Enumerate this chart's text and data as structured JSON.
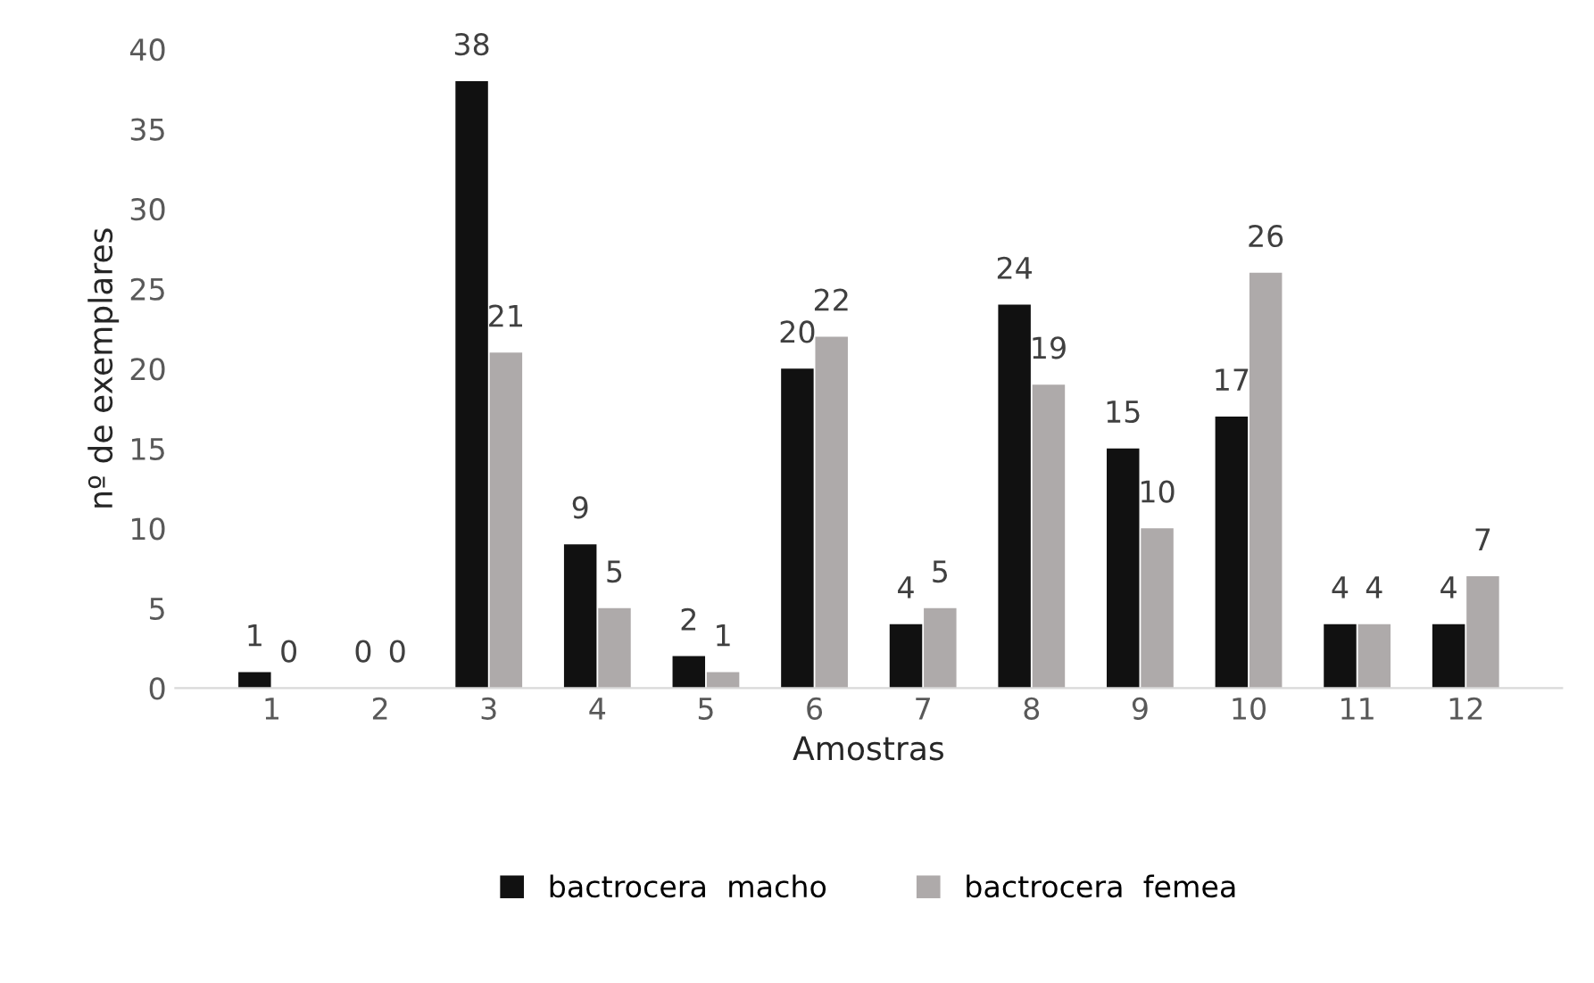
{
  "chart_data": {
    "type": "bar",
    "xlabel": "Amostras",
    "ylabel": "nº de exemplares",
    "categories": [
      "1",
      "2",
      "3",
      "4",
      "5",
      "6",
      "7",
      "8",
      "9",
      "10",
      "11",
      "12"
    ],
    "series": [
      {
        "name": "bactrocera  macho",
        "color": "#111111",
        "values": [
          1,
          0,
          38,
          9,
          2,
          20,
          4,
          24,
          15,
          17,
          4,
          4
        ]
      },
      {
        "name": "bactrocera  femea",
        "color": "#aeaaaa",
        "values": [
          0,
          0,
          21,
          5,
          1,
          22,
          5,
          19,
          10,
          26,
          4,
          7
        ]
      }
    ],
    "ylim": [
      0,
      40
    ],
    "yticks": [
      0,
      5,
      10,
      15,
      20,
      25,
      30,
      35,
      40
    ],
    "grid": false,
    "legend": "bottom",
    "data_labels": true
  }
}
